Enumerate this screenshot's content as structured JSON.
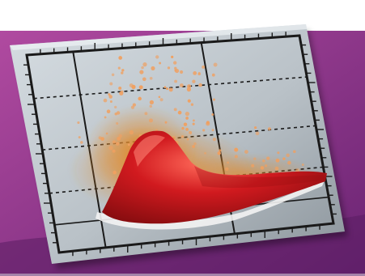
{
  "scene": {
    "colors": {
      "background": "#ffffff",
      "banner_light": "#b04aa0",
      "banner_dark": "#6a2473",
      "plate_light": "#d6dde2",
      "plate_dark": "#8b949b",
      "frame": "#1a1a1a",
      "peak_red": "#d11a1f",
      "peak_dark": "#8a0d10",
      "halo_orange": "#e08a2c",
      "dot_orange": "#f0a060"
    },
    "grid": {
      "solid_dividers": 2,
      "dashed_dividers": 3,
      "ticks_per_edge": 20
    }
  }
}
